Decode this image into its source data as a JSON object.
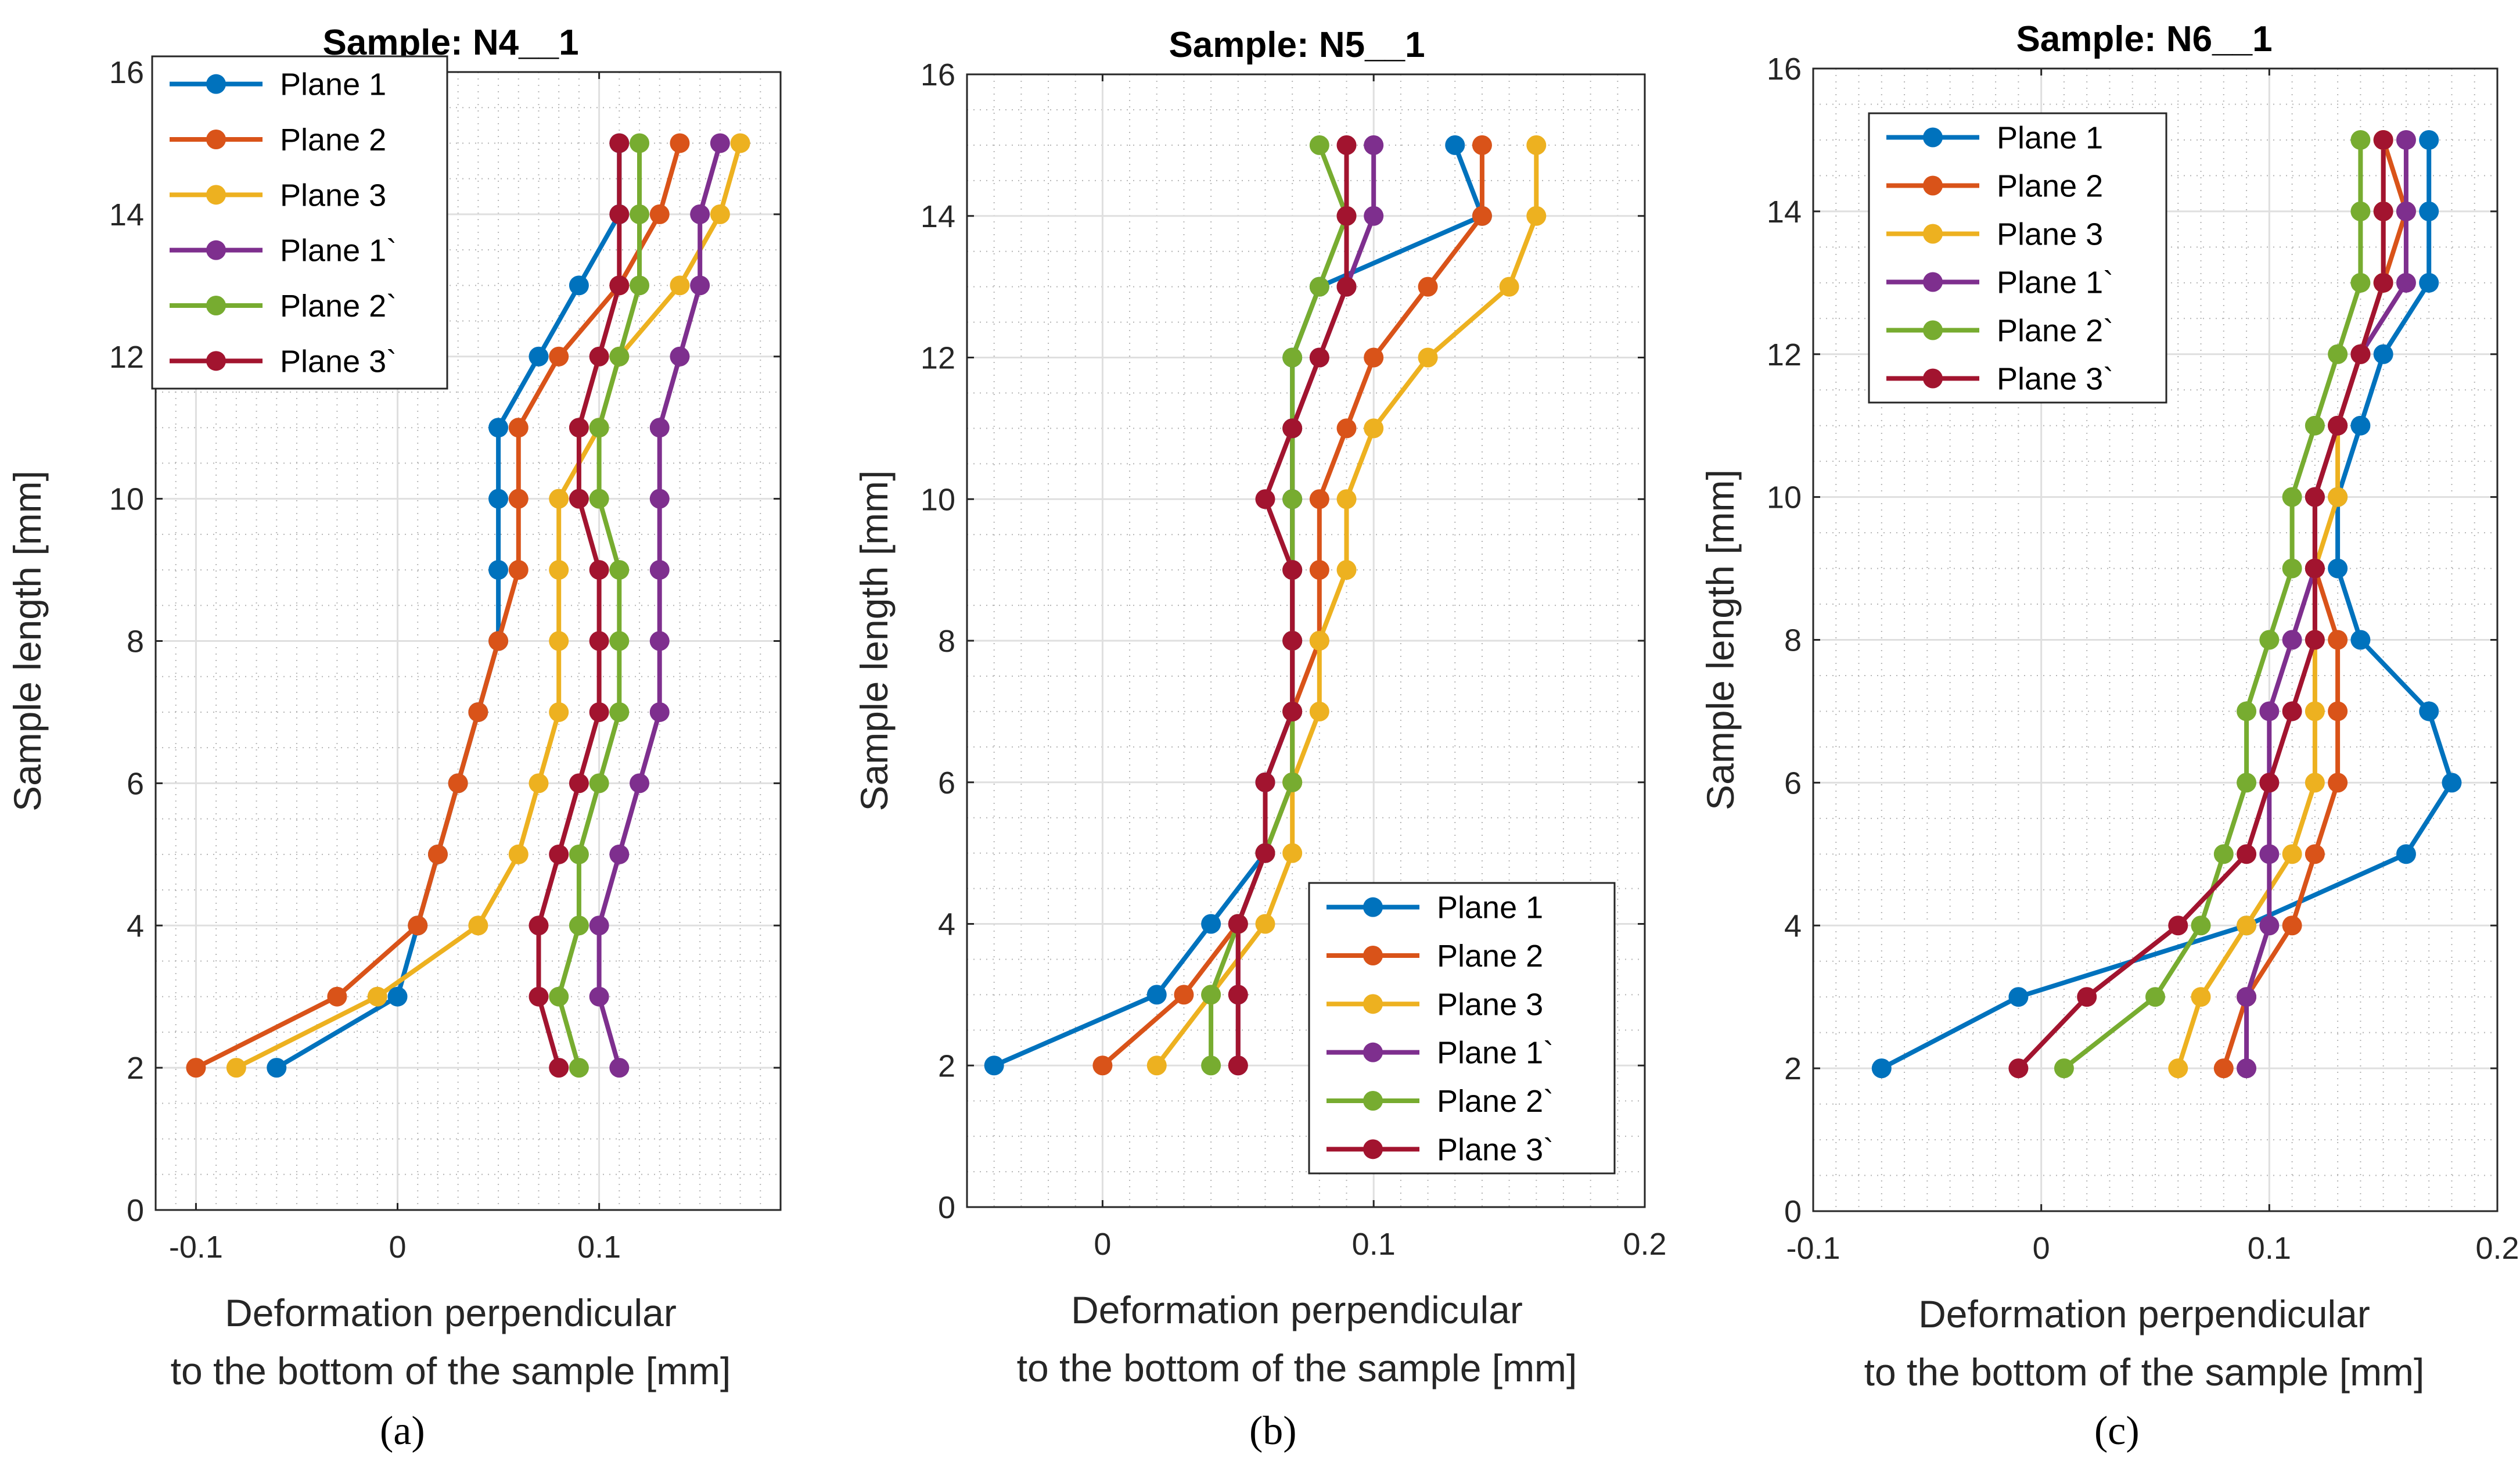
{
  "figure": {
    "colors": {
      "background": "#ffffff",
      "axis": "#262626",
      "grid": "#dfdfdf",
      "minor_grid": "#b5b5b5"
    }
  },
  "chart_data": [
    {
      "type": "line",
      "panel_label": "(a)",
      "panel_letter": "a",
      "title": "Sample: N4__1",
      "xlabel": [
        "Deformation perpendicular",
        "to the bottom of the sample [mm]"
      ],
      "ylabel": "Sample length [mm]",
      "xlim": [
        -0.12,
        0.19
      ],
      "ylim": [
        0,
        16
      ],
      "xticks": [
        -0.1,
        0,
        0.1
      ],
      "xtick_labels": [
        "-0.1",
        "0",
        "0.1"
      ],
      "yticks": [
        0,
        2,
        4,
        6,
        8,
        10,
        12,
        14,
        16
      ],
      "ytick_labels": [
        "0",
        "2",
        "4",
        "6",
        "8",
        "10",
        "12",
        "14",
        "16"
      ],
      "grid": true,
      "minor_grid": true,
      "legend_position": "top-left",
      "y": [
        2,
        3,
        4,
        5,
        6,
        7,
        8,
        9,
        10,
        11,
        12,
        13,
        14,
        15
      ],
      "series": [
        {
          "name": "Plane 1",
          "color": "#0072BD",
          "x": [
            -0.06,
            0.0,
            0.01,
            0.02,
            0.03,
            0.04,
            0.05,
            0.05,
            0.05,
            0.05,
            0.07,
            0.09,
            0.11,
            0.11
          ]
        },
        {
          "name": "Plane 2",
          "color": "#D95319",
          "x": [
            -0.1,
            -0.03,
            0.01,
            0.02,
            0.03,
            0.04,
            0.05,
            0.06,
            0.06,
            0.06,
            0.08,
            0.11,
            0.13,
            0.14
          ]
        },
        {
          "name": "Plane 3",
          "color": "#EDB120",
          "x": [
            -0.08,
            -0.01,
            0.04,
            0.06,
            0.07,
            0.08,
            0.08,
            0.08,
            0.08,
            0.1,
            0.11,
            0.14,
            0.16,
            0.17
          ]
        },
        {
          "name": "Plane 1`",
          "color": "#7E2F8E",
          "x": [
            0.11,
            0.1,
            0.1,
            0.11,
            0.12,
            0.13,
            0.13,
            0.13,
            0.13,
            0.13,
            0.14,
            0.15,
            0.15,
            0.16
          ]
        },
        {
          "name": "Plane 2`",
          "color": "#77AC30",
          "x": [
            0.09,
            0.08,
            0.09,
            0.09,
            0.1,
            0.11,
            0.11,
            0.11,
            0.1,
            0.1,
            0.11,
            0.12,
            0.12,
            0.12
          ]
        },
        {
          "name": "Plane 3`",
          "color": "#A2142F",
          "x": [
            0.08,
            0.07,
            0.07,
            0.08,
            0.09,
            0.1,
            0.1,
            0.1,
            0.09,
            0.09,
            0.1,
            0.11,
            0.11,
            0.11
          ]
        }
      ]
    },
    {
      "type": "line",
      "panel_label": "(b)",
      "panel_letter": "b",
      "title": "Sample: N5__1",
      "xlabel": [
        "Deformation perpendicular",
        "to the bottom of the sample [mm]"
      ],
      "ylabel": "Sample length [mm]",
      "xlim": [
        -0.05,
        0.2
      ],
      "ylim": [
        0,
        16
      ],
      "xticks": [
        0,
        0.1,
        0.2
      ],
      "xtick_labels": [
        "0",
        "0.1",
        "0.2"
      ],
      "yticks": [
        0,
        2,
        4,
        6,
        8,
        10,
        12,
        14,
        16
      ],
      "ytick_labels": [
        "0",
        "2",
        "4",
        "6",
        "8",
        "10",
        "12",
        "14",
        "16"
      ],
      "grid": true,
      "minor_grid": true,
      "legend_position": "bottom-right",
      "y": [
        2,
        3,
        4,
        5,
        6,
        7,
        8,
        9,
        10,
        11,
        12,
        13,
        14,
        15
      ],
      "series": [
        {
          "name": "Plane 1",
          "color": "#0072BD",
          "x": [
            -0.04,
            0.02,
            0.04,
            0.06,
            0.06,
            0.07,
            0.07,
            0.07,
            0.07,
            0.07,
            0.07,
            0.08,
            0.14,
            0.13
          ]
        },
        {
          "name": "Plane 2",
          "color": "#D95319",
          "x": [
            0.0,
            0.03,
            0.05,
            0.06,
            0.07,
            0.07,
            0.08,
            0.08,
            0.08,
            0.09,
            0.1,
            0.12,
            0.14,
            0.14
          ]
        },
        {
          "name": "Plane 3",
          "color": "#EDB120",
          "x": [
            0.02,
            0.04,
            0.06,
            0.07,
            0.07,
            0.08,
            0.08,
            0.09,
            0.09,
            0.1,
            0.12,
            0.15,
            0.16,
            0.16
          ]
        },
        {
          "name": "Plane 1`",
          "color": "#7E2F8E",
          "x": [
            0.05,
            0.05,
            0.05,
            0.06,
            0.06,
            0.07,
            0.07,
            0.07,
            0.07,
            0.07,
            0.08,
            0.09,
            0.1,
            0.1
          ]
        },
        {
          "name": "Plane 2`",
          "color": "#77AC30",
          "x": [
            0.04,
            0.04,
            0.05,
            0.06,
            0.07,
            0.07,
            0.07,
            0.07,
            0.07,
            0.07,
            0.07,
            0.08,
            0.09,
            0.08
          ]
        },
        {
          "name": "Plane 3`",
          "color": "#A2142F",
          "x": [
            0.05,
            0.05,
            0.05,
            0.06,
            0.06,
            0.07,
            0.07,
            0.07,
            0.06,
            0.07,
            0.08,
            0.09,
            0.09,
            0.09
          ]
        }
      ]
    },
    {
      "type": "line",
      "panel_label": "(c)",
      "panel_letter": "c",
      "title": "Sample: N6__1",
      "xlabel": [
        "Deformation perpendicular",
        "to the bottom of the sample [mm]"
      ],
      "ylabel": "Sample length [mm]",
      "xlim": [
        -0.1,
        0.2
      ],
      "ylim": [
        0,
        16
      ],
      "xticks": [
        -0.1,
        0,
        0.1,
        0.2
      ],
      "xtick_labels": [
        "-0.1",
        "0",
        "0.1",
        "0.2"
      ],
      "yticks": [
        0,
        2,
        4,
        6,
        8,
        10,
        12,
        14,
        16
      ],
      "ytick_labels": [
        "0",
        "2",
        "4",
        "6",
        "8",
        "10",
        "12",
        "14",
        "16"
      ],
      "grid": true,
      "minor_grid": true,
      "legend_position": "top-left",
      "y": [
        2,
        3,
        4,
        5,
        6,
        7,
        8,
        9,
        10,
        11,
        12,
        13,
        14,
        15
      ],
      "series": [
        {
          "name": "Plane 1",
          "color": "#0072BD",
          "x": [
            -0.07,
            -0.01,
            0.09,
            0.16,
            0.18,
            0.17,
            0.14,
            0.13,
            0.13,
            0.14,
            0.15,
            0.17,
            0.17,
            0.17
          ]
        },
        {
          "name": "Plane 2",
          "color": "#D95319",
          "x": [
            0.08,
            0.09,
            0.11,
            0.12,
            0.13,
            0.13,
            0.13,
            0.12,
            0.12,
            0.13,
            0.14,
            0.15,
            0.16,
            0.15
          ]
        },
        {
          "name": "Plane 3",
          "color": "#EDB120",
          "x": [
            0.06,
            0.07,
            0.09,
            0.11,
            0.12,
            0.12,
            0.12,
            0.12,
            0.13,
            0.13,
            0.14,
            0.15,
            0.15,
            0.15
          ]
        },
        {
          "name": "Plane 1`",
          "color": "#7E2F8E",
          "x": [
            0.09,
            0.09,
            0.1,
            0.1,
            0.1,
            0.1,
            0.11,
            0.12,
            0.12,
            0.13,
            0.14,
            0.16,
            0.16,
            0.16
          ]
        },
        {
          "name": "Plane 2`",
          "color": "#77AC30",
          "x": [
            0.01,
            0.05,
            0.07,
            0.08,
            0.09,
            0.09,
            0.1,
            0.11,
            0.11,
            0.12,
            0.13,
            0.14,
            0.14,
            0.14
          ]
        },
        {
          "name": "Plane 3`",
          "color": "#A2142F",
          "x": [
            -0.01,
            0.02,
            0.06,
            0.09,
            0.1,
            0.11,
            0.12,
            0.12,
            0.12,
            0.13,
            0.14,
            0.15,
            0.15,
            0.15
          ]
        }
      ]
    }
  ]
}
